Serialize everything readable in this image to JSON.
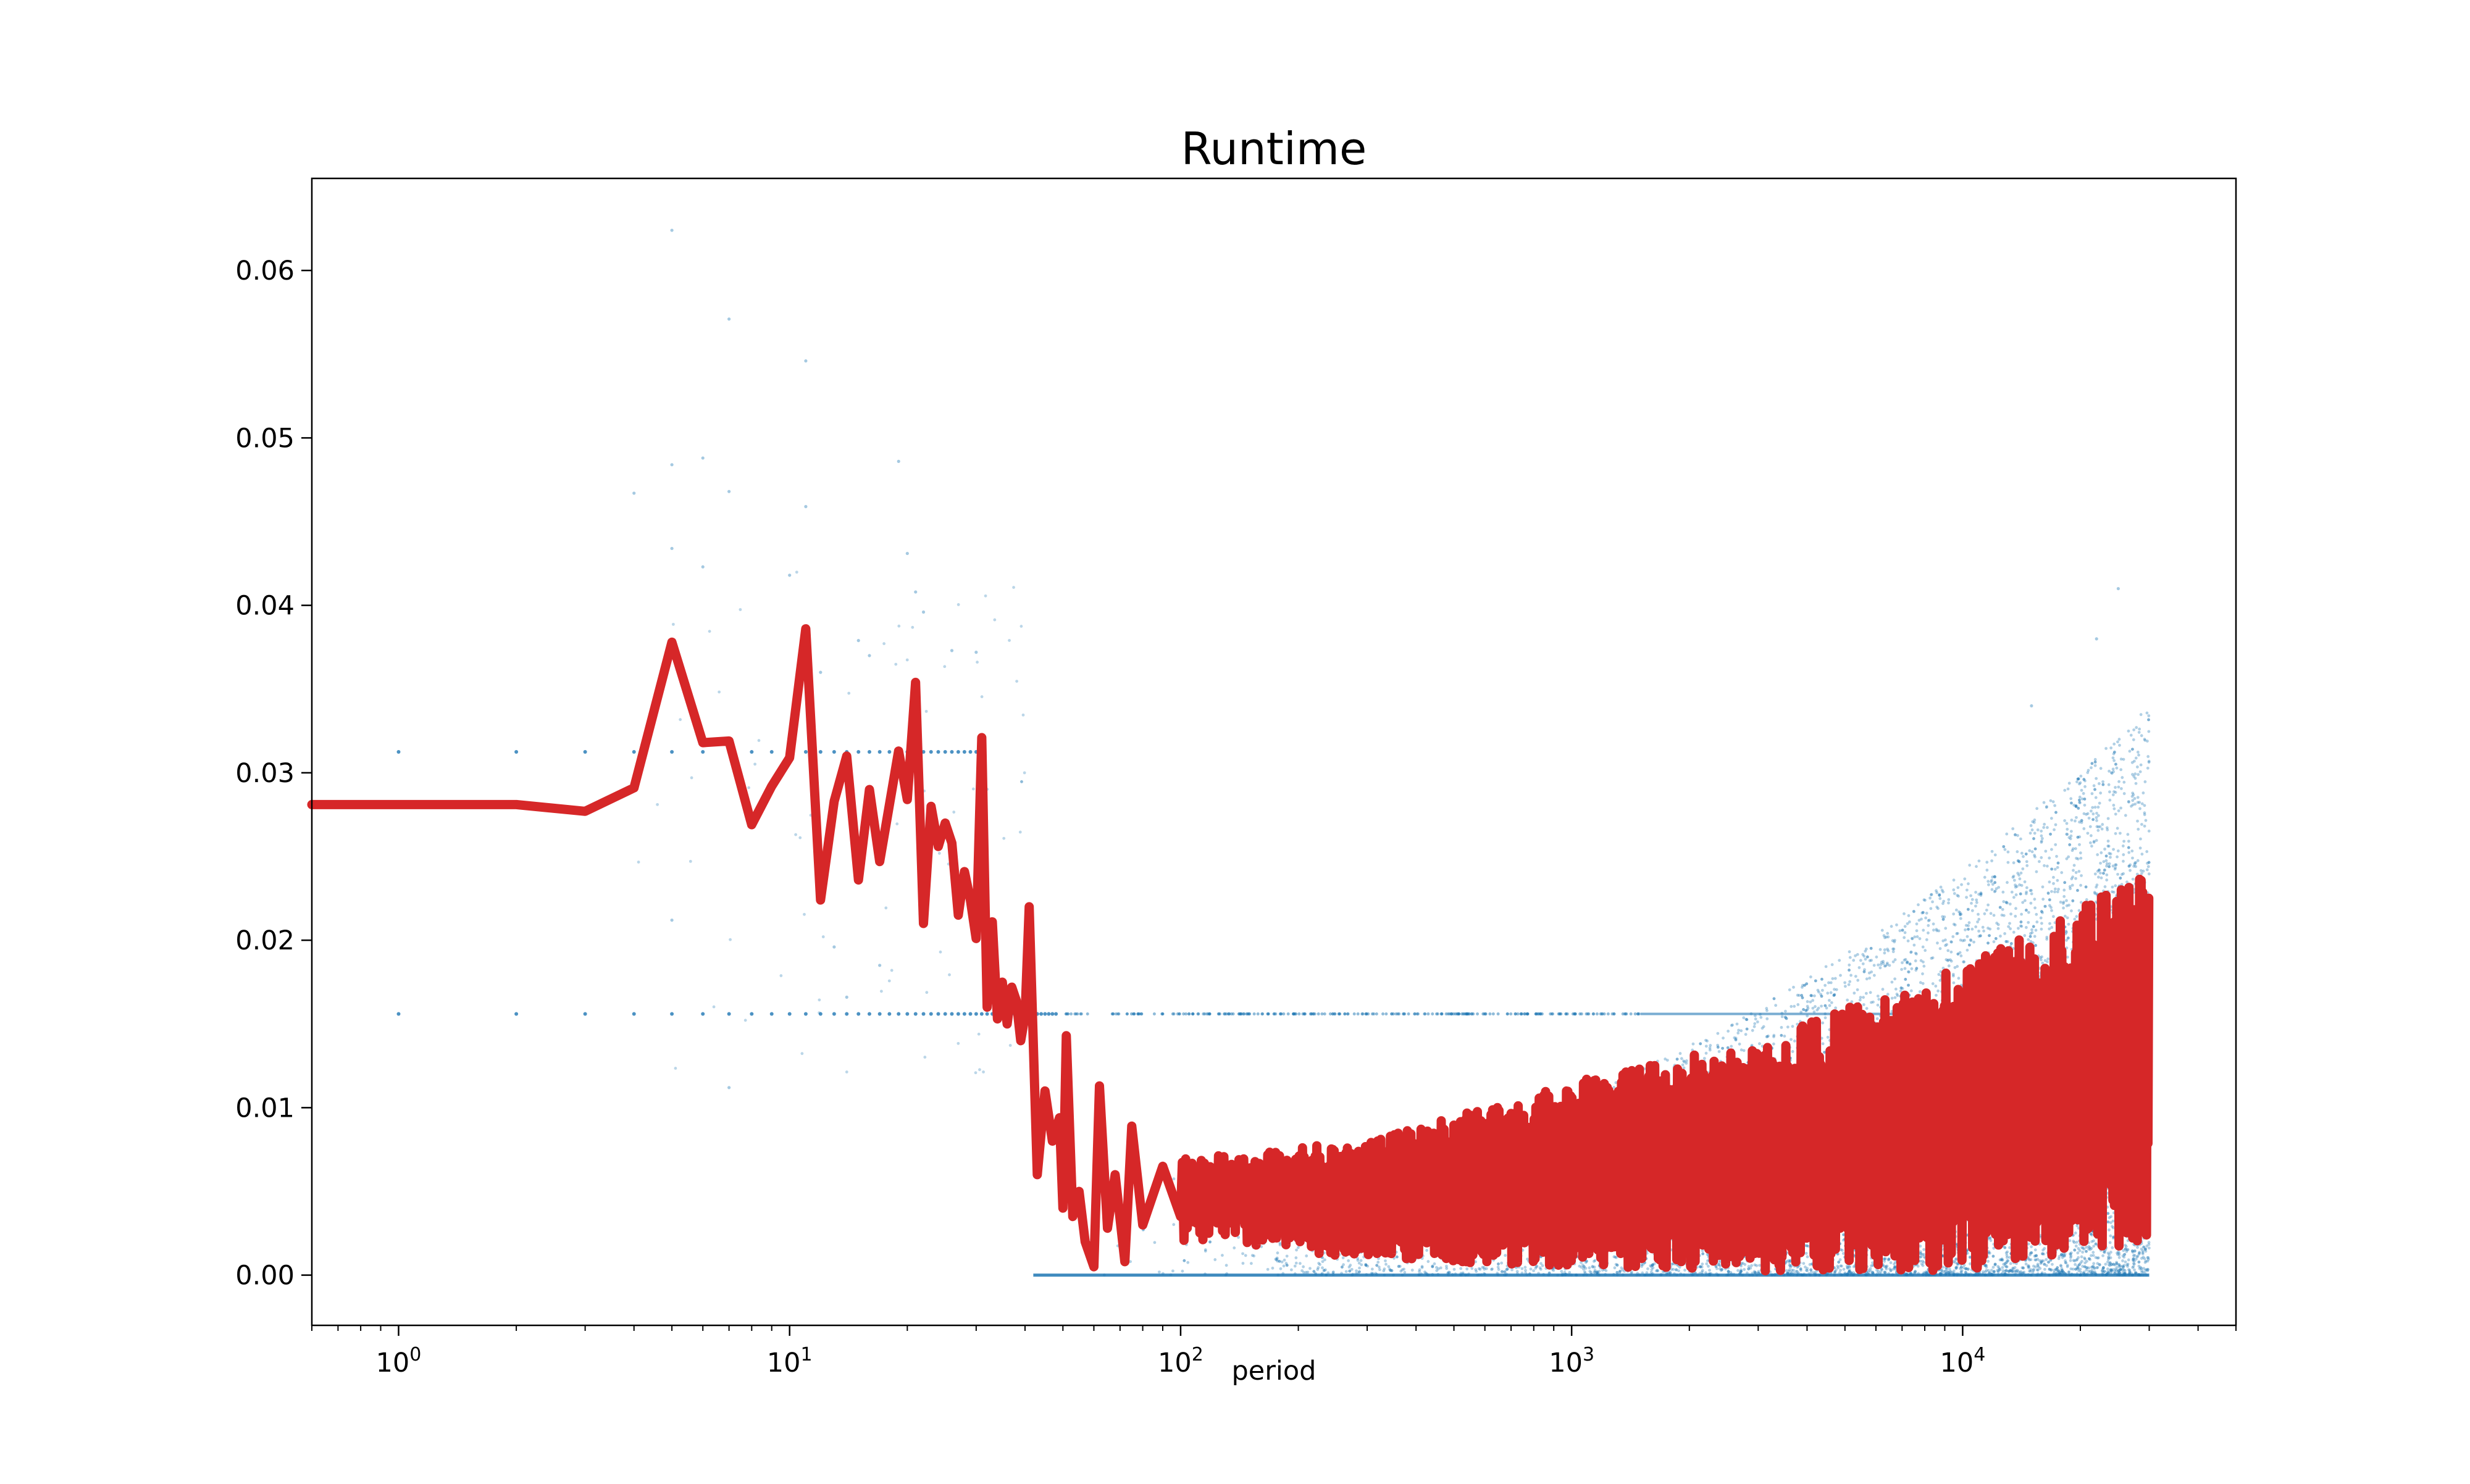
{
  "chart_data": {
    "type": "scatter",
    "title": "Runtime",
    "xlabel": "period",
    "ylabel": "",
    "x_scale": "log",
    "xlim": [
      0.6,
      50000
    ],
    "ylim": [
      -0.003,
      0.0655
    ],
    "grid": false,
    "legend": "none",
    "x_ticks": [
      {
        "value": 1,
        "base": "10",
        "exp": "0"
      },
      {
        "value": 10,
        "base": "10",
        "exp": "1"
      },
      {
        "value": 100,
        "base": "10",
        "exp": "2"
      },
      {
        "value": 1000,
        "base": "10",
        "exp": "3"
      },
      {
        "value": 10000,
        "base": "10",
        "exp": "4"
      }
    ],
    "y_ticks": [
      {
        "value": 0.0,
        "label": "0.00"
      },
      {
        "value": 0.01,
        "label": "0.01"
      },
      {
        "value": 0.02,
        "label": "0.02"
      },
      {
        "value": 0.03,
        "label": "0.03"
      },
      {
        "value": 0.04,
        "label": "0.04"
      },
      {
        "value": 0.05,
        "label": "0.05"
      },
      {
        "value": 0.06,
        "label": "0.06"
      }
    ],
    "series": [
      {
        "kind": "scatter",
        "color": "#1f77b4",
        "x_range": [
          1,
          30000
        ],
        "quantized_levels": [
          0.0,
          0.0156,
          0.03125
        ],
        "outlier_points": [
          [
            5,
            0.0624
          ],
          [
            7,
            0.0571
          ],
          [
            11,
            0.0546
          ],
          [
            5,
            0.0484
          ],
          [
            6,
            0.0488
          ],
          [
            7,
            0.0468
          ],
          [
            4,
            0.0467
          ],
          [
            11,
            0.0459
          ],
          [
            19,
            0.0486
          ],
          [
            20,
            0.0431
          ],
          [
            5,
            0.0434
          ],
          [
            10,
            0.0418
          ],
          [
            6,
            0.0423
          ],
          [
            15,
            0.0379
          ],
          [
            16,
            0.037
          ],
          [
            21,
            0.0408
          ],
          [
            22,
            0.0396
          ],
          [
            26,
            0.0373
          ],
          [
            30,
            0.0372
          ],
          [
            12,
            0.036
          ],
          [
            5,
            0.0212
          ],
          [
            7,
            0.0112
          ],
          [
            13,
            0.0196
          ],
          [
            14,
            0.0166
          ],
          [
            17,
            0.0185
          ],
          [
            25000,
            0.041
          ],
          [
            22000,
            0.038
          ],
          [
            15000,
            0.034
          ]
        ]
      },
      {
        "kind": "line",
        "color": "#d62728",
        "points": [
          [
            0.6,
            0.0281
          ],
          [
            1,
            0.0281
          ],
          [
            2,
            0.0281
          ],
          [
            3,
            0.0277
          ],
          [
            4,
            0.0291
          ],
          [
            5,
            0.0378
          ],
          [
            6,
            0.0318
          ],
          [
            7,
            0.0319
          ],
          [
            8,
            0.0269
          ],
          [
            9,
            0.0292
          ],
          [
            10,
            0.0309
          ],
          [
            11,
            0.0386
          ],
          [
            12,
            0.0224
          ],
          [
            13,
            0.0283
          ],
          [
            14,
            0.031
          ],
          [
            15,
            0.0236
          ],
          [
            16,
            0.029
          ],
          [
            17,
            0.0247
          ],
          [
            18,
            0.0281
          ],
          [
            19,
            0.0313
          ],
          [
            20,
            0.0284
          ],
          [
            21,
            0.0354
          ],
          [
            22,
            0.021
          ],
          [
            23,
            0.028
          ],
          [
            24,
            0.0256
          ],
          [
            25,
            0.027
          ],
          [
            26,
            0.0258
          ],
          [
            27,
            0.0215
          ],
          [
            28,
            0.0241
          ],
          [
            29,
            0.0224
          ],
          [
            30,
            0.0201
          ],
          [
            31,
            0.0321
          ],
          [
            32,
            0.016
          ],
          [
            33,
            0.0211
          ],
          [
            34,
            0.0153
          ],
          [
            35,
            0.0175
          ],
          [
            36,
            0.015
          ],
          [
            37,
            0.0172
          ],
          [
            38,
            0.0164
          ],
          [
            39,
            0.014
          ],
          [
            40,
            0.0155
          ],
          [
            41,
            0.022
          ],
          [
            43,
            0.006
          ],
          [
            45,
            0.011
          ],
          [
            47,
            0.008
          ],
          [
            49,
            0.0094
          ],
          [
            50,
            0.004
          ],
          [
            51,
            0.0143
          ],
          [
            53,
            0.0035
          ],
          [
            55,
            0.005
          ],
          [
            57,
            0.002
          ],
          [
            60,
            0.0005
          ],
          [
            62,
            0.0113
          ],
          [
            65,
            0.0028
          ],
          [
            68,
            0.006
          ],
          [
            72,
            0.0008
          ],
          [
            75,
            0.0089
          ],
          [
            80,
            0.003
          ],
          [
            90,
            0.0065
          ],
          [
            100,
            0.0035
          ]
        ],
        "band_envelope": [
          {
            "x": 100,
            "low": 0.002,
            "high": 0.007
          },
          {
            "x": 300,
            "low": 0.001,
            "high": 0.008
          },
          {
            "x": 1000,
            "low": 0.0005,
            "high": 0.0115
          },
          {
            "x": 3000,
            "low": 0.0002,
            "high": 0.014
          },
          {
            "x": 10000,
            "low": 0.0002,
            "high": 0.0185
          },
          {
            "x": 30000,
            "low": 0.002,
            "high": 0.024
          }
        ]
      }
    ]
  }
}
